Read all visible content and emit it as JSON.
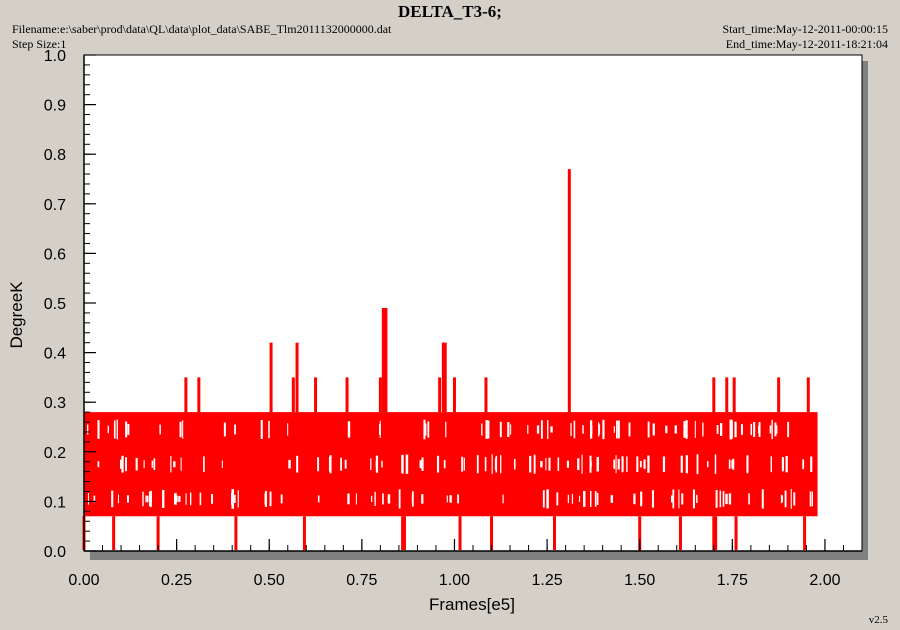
{
  "header": {
    "title": "DELTA_T3-6;",
    "filename": "Filename:e:\\saber\\prod\\data\\QL\\data\\plot_data\\SABE_Tlm2011132000000.dat",
    "step_size": "Step Size:1",
    "start_time": "Start_time:May-12-2011-00:00:15",
    "end_time": "End_time:May-12-2011-18:21:04",
    "version": "v2.5"
  },
  "colors": {
    "series": "#ff0000",
    "plot_bg": "#ffffff",
    "frame_bg": "#d4d0c8",
    "shadow": "#808080"
  },
  "chart_data": {
    "type": "line",
    "title": "DELTA_T3-6;",
    "xlabel": "Frames[e5]",
    "ylabel": "DegreeK",
    "xlim": [
      0,
      2.1
    ],
    "ylim": [
      0,
      1.0
    ],
    "x_ticks": [
      "0.00",
      "0.25",
      "0.50",
      "0.75",
      "1.00",
      "1.25",
      "1.50",
      "1.75",
      "2.00"
    ],
    "y_ticks": [
      "0.0",
      "0.1",
      "0.2",
      "0.3",
      "0.4",
      "0.5",
      "0.6",
      "0.7",
      "0.8",
      "0.9",
      "1.0"
    ],
    "grid": false,
    "series": [
      {
        "x_range": [
          0,
          1.98
        ],
        "band": [
          0.07,
          0.28
        ],
        "spikes": [
          [
            0.275,
            0.35
          ],
          [
            0.31,
            0.35
          ],
          [
            0.505,
            0.42
          ],
          [
            0.565,
            0.35
          ],
          [
            0.575,
            0.42
          ],
          [
            0.625,
            0.35
          ],
          [
            0.71,
            0.35
          ],
          [
            0.8,
            0.35
          ],
          [
            0.808,
            0.49
          ],
          [
            0.815,
            0.49
          ],
          [
            0.96,
            0.35
          ],
          [
            0.97,
            0.42
          ],
          [
            0.975,
            0.42
          ],
          [
            1.0,
            0.35
          ],
          [
            1.085,
            0.35
          ],
          [
            1.31,
            0.77
          ],
          [
            1.7,
            0.35
          ],
          [
            1.735,
            0.35
          ],
          [
            1.755,
            0.35
          ],
          [
            1.875,
            0.35
          ],
          [
            1.955,
            0.35
          ]
        ],
        "dips": [
          0.0,
          0.08,
          0.2,
          0.41,
          0.595,
          0.86,
          0.865,
          1.015,
          1.1,
          1.27,
          1.5,
          1.61,
          1.7,
          1.705,
          1.76,
          1.945
        ]
      }
    ]
  }
}
